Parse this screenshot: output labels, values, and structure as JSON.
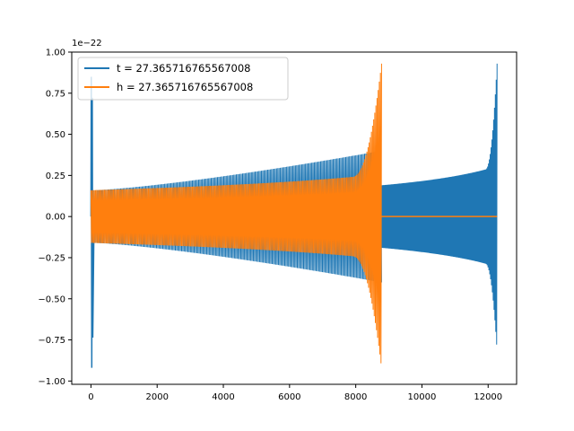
{
  "chart_data": {
    "type": "line",
    "offset_label": "1e−22",
    "xlim": [
      -580,
      12860
    ],
    "ylim": [
      -1.02,
      1.0
    ],
    "x_ticks": [
      0,
      2000,
      4000,
      6000,
      8000,
      10000,
      12000
    ],
    "x_tick_labels": [
      "0",
      "2000",
      "4000",
      "6000",
      "8000",
      "10000",
      "12000"
    ],
    "y_ticks": [
      -1.0,
      -0.75,
      -0.5,
      -0.25,
      0.0,
      0.25,
      0.5,
      0.75,
      1.0
    ],
    "y_tick_labels": [
      "−1.00",
      "−0.75",
      "−0.50",
      "−0.25",
      "0.00",
      "0.25",
      "0.50",
      "0.75",
      "1.00"
    ],
    "grid": false,
    "legend_position": "upper-left",
    "series": [
      {
        "name": "t = 27.365716765567008",
        "color": "#1f77b4",
        "x_range": [
          0,
          12270
        ],
        "events": [
          {
            "start": 0,
            "end": 100,
            "peak_positive": 0.85,
            "peak_negative": -0.92
          },
          {
            "start": 8780,
            "end": 12270,
            "amplitude_start": 0.19,
            "peak_positive": 0.93,
            "peak_negative": -0.82
          }
        ],
        "background_amplitude_start": 0.16,
        "background_amplitude_end": 0.4
      },
      {
        "name": "h = 27.365716765567008",
        "color": "#ff7f0e",
        "x_range": [
          0,
          12270
        ],
        "events": [
          {
            "start": 0,
            "end": 8780,
            "amplitude_start": 0.16,
            "peak_positive": 0.93,
            "peak_negative": -0.92
          }
        ],
        "flat_after": 8780,
        "flat_value": 0.0
      }
    ]
  }
}
